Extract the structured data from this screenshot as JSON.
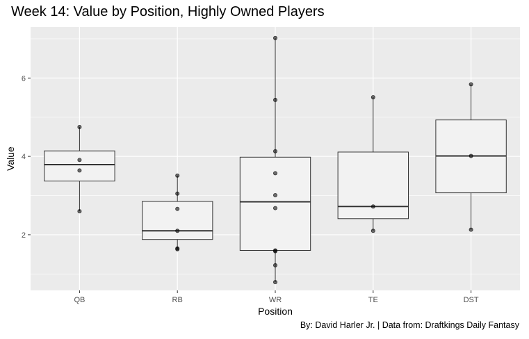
{
  "title": "Week 14: Value by Position, Highly Owned Players",
  "caption": "By: David Harler Jr. | Data from: Draftkings Daily Fantasy",
  "chart_data": {
    "type": "boxplot",
    "xlabel": "Position",
    "ylabel": "Value",
    "categories": [
      "QB",
      "RB",
      "WR",
      "TE",
      "DST"
    ],
    "ylim": [
      0.58,
      7.3
    ],
    "yticks": [
      2,
      4,
      6
    ],
    "grid": true,
    "boxes": [
      {
        "category": "QB",
        "min": 2.6,
        "q1": 3.37,
        "median": 3.79,
        "q3": 4.14,
        "max": 4.75
      },
      {
        "category": "RB",
        "min": 1.63,
        "q1": 1.88,
        "median": 2.1,
        "q3": 2.85,
        "max": 3.51
      },
      {
        "category": "WR",
        "min": 0.79,
        "q1": 1.6,
        "median": 2.84,
        "q3": 3.98,
        "max": 7.02
      },
      {
        "category": "TE",
        "min": 2.1,
        "q1": 2.41,
        "median": 2.72,
        "q3": 4.11,
        "max": 5.51
      },
      {
        "category": "DST",
        "min": 2.13,
        "q1": 3.07,
        "median": 4.01,
        "q3": 4.93,
        "max": 5.84
      }
    ],
    "points": [
      {
        "category": "QB",
        "values": [
          4.75,
          3.91,
          3.64,
          2.6
        ]
      },
      {
        "category": "RB",
        "values": [
          3.51,
          3.05,
          2.66,
          2.1,
          1.65,
          1.63
        ]
      },
      {
        "category": "WR",
        "values": [
          7.02,
          5.44,
          4.13,
          3.57,
          3.01,
          2.68,
          1.6,
          1.58,
          1.22,
          0.79
        ]
      },
      {
        "category": "TE",
        "values": [
          5.51,
          2.72,
          2.1
        ]
      },
      {
        "category": "DST",
        "values": [
          5.84,
          4.01,
          2.13
        ]
      }
    ],
    "colors": {
      "panel_background": "#ebebeb",
      "gridline": "#ffffff",
      "box_fill": "#f2f2f2",
      "box_outline": "#333333",
      "point_fill": "#000000"
    }
  }
}
